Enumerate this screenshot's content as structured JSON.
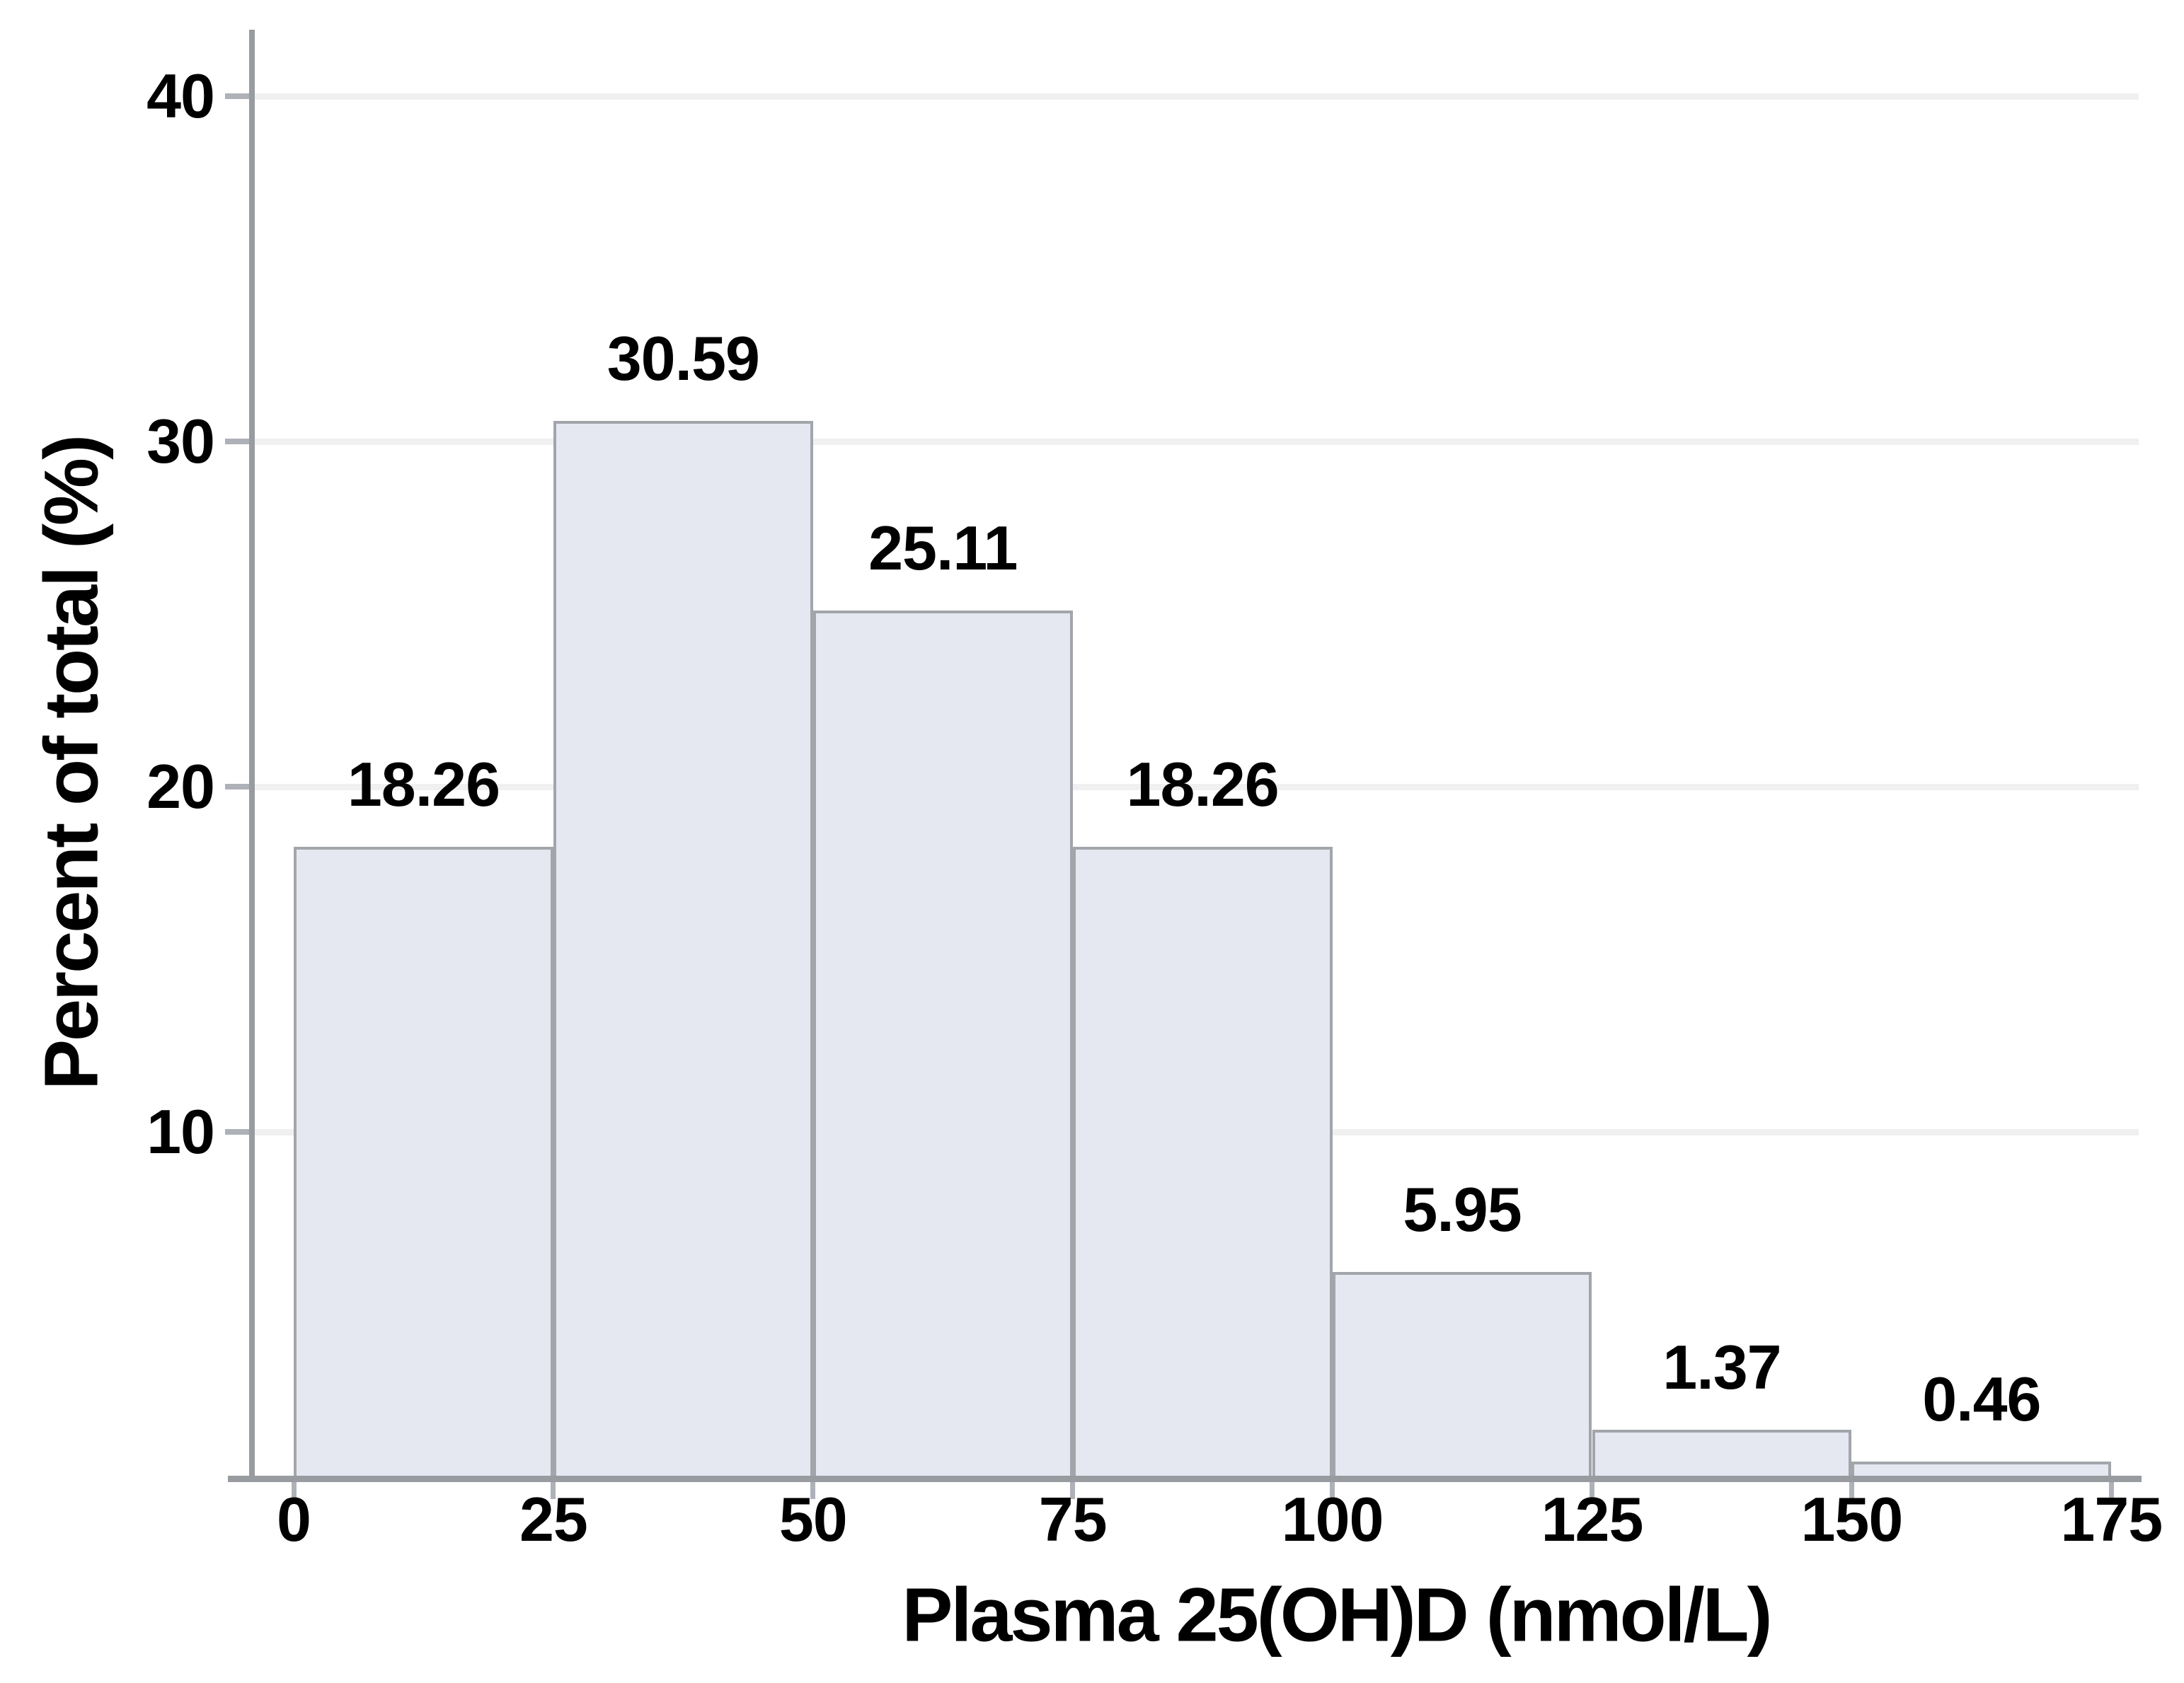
{
  "chart_data": {
    "type": "bar",
    "subtype": "histogram",
    "title": "",
    "xlabel": "Plasma 25(OH)D (nmol/L)",
    "ylabel": "Percent of total (%)",
    "bin_edges": [
      0,
      25,
      50,
      75,
      100,
      125,
      150,
      175
    ],
    "categories": [
      "0-25",
      "25-50",
      "50-75",
      "75-100",
      "100-125",
      "125-150",
      "150-175"
    ],
    "values": [
      18.26,
      30.59,
      25.11,
      18.26,
      5.95,
      1.37,
      0.46
    ],
    "bar_labels": [
      "18.26",
      "30.59",
      "25.11",
      "18.26",
      "5.95",
      "1.37",
      "0.46"
    ],
    "x_tick_labels": [
      "0",
      "25",
      "50",
      "75",
      "100",
      "125",
      "150",
      "175"
    ],
    "x_tick_values": [
      0,
      25,
      50,
      75,
      100,
      125,
      150,
      175
    ],
    "y_tick_labels": [
      "10",
      "20",
      "30",
      "40"
    ],
    "y_tick_values": [
      10,
      20,
      30,
      40
    ],
    "xlim": [
      0,
      175
    ],
    "ylim": [
      0,
      42
    ],
    "grid": "horizontal-only",
    "legend": "none",
    "colors": {
      "background": "#ffffff",
      "bar_fill": "#e5e8f1",
      "bar_border": "#a2a5aa",
      "axis_line": "#989ba0",
      "tick": "#aeb2b8",
      "gridline": "#f0f0f1",
      "text": "#000000"
    }
  }
}
